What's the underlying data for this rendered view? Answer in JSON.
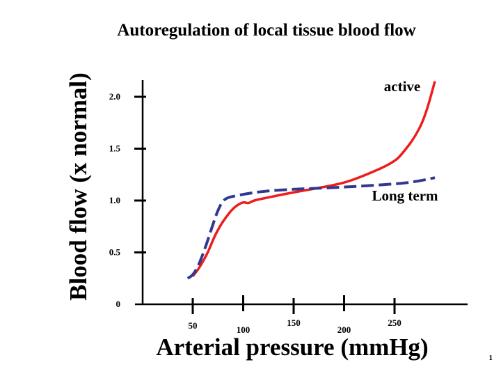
{
  "slide": {
    "title": "Autoregulation of local tissue blood flow",
    "page_number": "1"
  },
  "colors": {
    "active": "#ee1c1c",
    "long_term": "#2f3a8f",
    "axis": "#000000"
  },
  "chart_data": {
    "type": "line",
    "title": "Autoregulation of local tissue blood flow",
    "xlabel": "Arterial pressure (mmHg)",
    "ylabel": "Blood flow (x normal)",
    "xlim": [
      0,
      300
    ],
    "ylim": [
      0,
      2.1
    ],
    "xticks": [
      {
        "value": 50,
        "label": "50"
      },
      {
        "value": 100,
        "label": "100"
      },
      {
        "value": 150,
        "label": "150"
      },
      {
        "value": 200,
        "label": "200"
      },
      {
        "value": 250,
        "label": "250"
      }
    ],
    "yticks": [
      {
        "value": 0,
        "label": "0"
      },
      {
        "value": 0.5,
        "label": "0.5"
      },
      {
        "value": 1.0,
        "label": "1.0"
      },
      {
        "value": 1.5,
        "label": "1.5"
      },
      {
        "value": 2.0,
        "label": "2.0"
      }
    ],
    "grid": false,
    "series": [
      {
        "name": "active",
        "style": "solid",
        "x": [
          50,
          55,
          60,
          65,
          70,
          75,
          80,
          90,
          100,
          105,
          110,
          120,
          150,
          180,
          200,
          220,
          250,
          260,
          270,
          280,
          290
        ],
        "y": [
          0.27,
          0.33,
          0.41,
          0.5,
          0.62,
          0.72,
          0.8,
          0.93,
          0.99,
          0.97,
          1.0,
          1.02,
          1.08,
          1.13,
          1.17,
          1.24,
          1.37,
          1.48,
          1.61,
          1.8,
          2.15
        ]
      },
      {
        "name": "Long term",
        "style": "dashed",
        "x": [
          45,
          50,
          55,
          60,
          65,
          70,
          75,
          80,
          85,
          90,
          100,
          120,
          150,
          180,
          200,
          220,
          250,
          270,
          290
        ],
        "y": [
          0.25,
          0.28,
          0.36,
          0.48,
          0.62,
          0.77,
          0.91,
          1.0,
          1.03,
          1.04,
          1.06,
          1.09,
          1.11,
          1.12,
          1.13,
          1.14,
          1.16,
          1.18,
          1.22
        ]
      }
    ]
  }
}
